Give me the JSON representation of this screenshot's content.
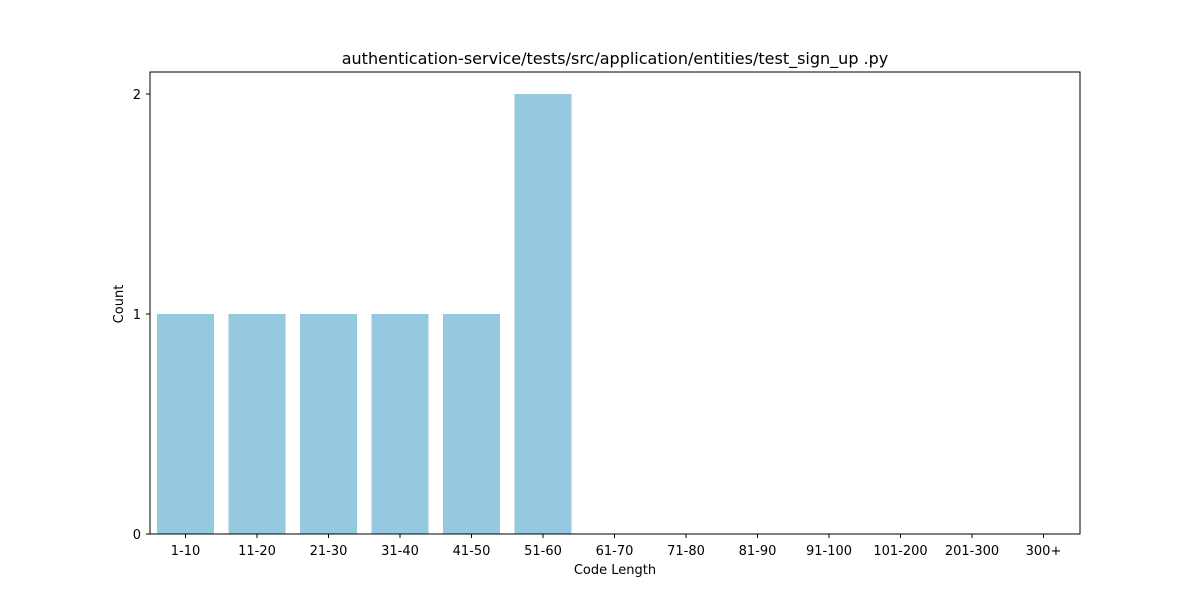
{
  "chart_data": {
    "type": "bar",
    "title": "authentication-service/tests/src/application/entities/test_sign_up .py",
    "xlabel": "Code Length",
    "ylabel": "Count",
    "categories": [
      "1-10",
      "11-20",
      "21-30",
      "31-40",
      "41-50",
      "51-60",
      "61-70",
      "71-80",
      "81-90",
      "91-100",
      "101-200",
      "201-300",
      "300+"
    ],
    "values": [
      1,
      1,
      1,
      1,
      1,
      2,
      0,
      0,
      0,
      0,
      0,
      0,
      0
    ],
    "yticks": [
      "0",
      "1",
      "2"
    ],
    "ylim": [
      0,
      2.1
    ],
    "grid": false,
    "legend": "none",
    "colors": {
      "bar": "#96c9df",
      "axis": "#000000",
      "background": "#ffffff"
    }
  }
}
